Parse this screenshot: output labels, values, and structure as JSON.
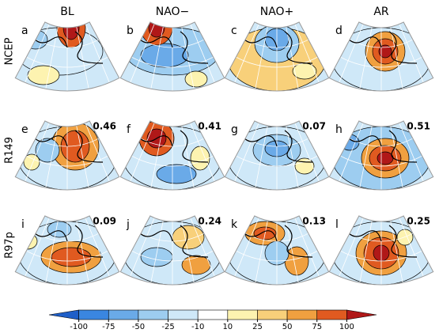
{
  "columns": [
    "BL",
    "NAO−",
    "NAO+",
    "AR"
  ],
  "rows": [
    "NCEP",
    "R149",
    "R97p"
  ],
  "panels": [
    [
      {
        "letter": "a"
      },
      {
        "letter": "b"
      },
      {
        "letter": "c"
      },
      {
        "letter": "d"
      }
    ],
    [
      {
        "letter": "e",
        "value": 0.46
      },
      {
        "letter": "f",
        "value": 0.41
      },
      {
        "letter": "g",
        "value": 0.07
      },
      {
        "letter": "h",
        "value": 0.51
      }
    ],
    [
      {
        "letter": "i",
        "value": 0.09
      },
      {
        "letter": "j",
        "value": 0.24
      },
      {
        "letter": "k",
        "value": 0.13
      },
      {
        "letter": "l",
        "value": 0.25
      }
    ]
  ],
  "colorbar": {
    "ticks": [
      -100,
      -75,
      -50,
      -25,
      -10,
      10,
      25,
      50,
      75,
      100
    ],
    "colors": [
      "#1f5fc8",
      "#3a86e0",
      "#6aaae8",
      "#9dcdf0",
      "#cfe8f8",
      "#ffffff",
      "#fdf3b0",
      "#f8d07a",
      "#f0a040",
      "#e05a20",
      "#b01818"
    ]
  }
}
